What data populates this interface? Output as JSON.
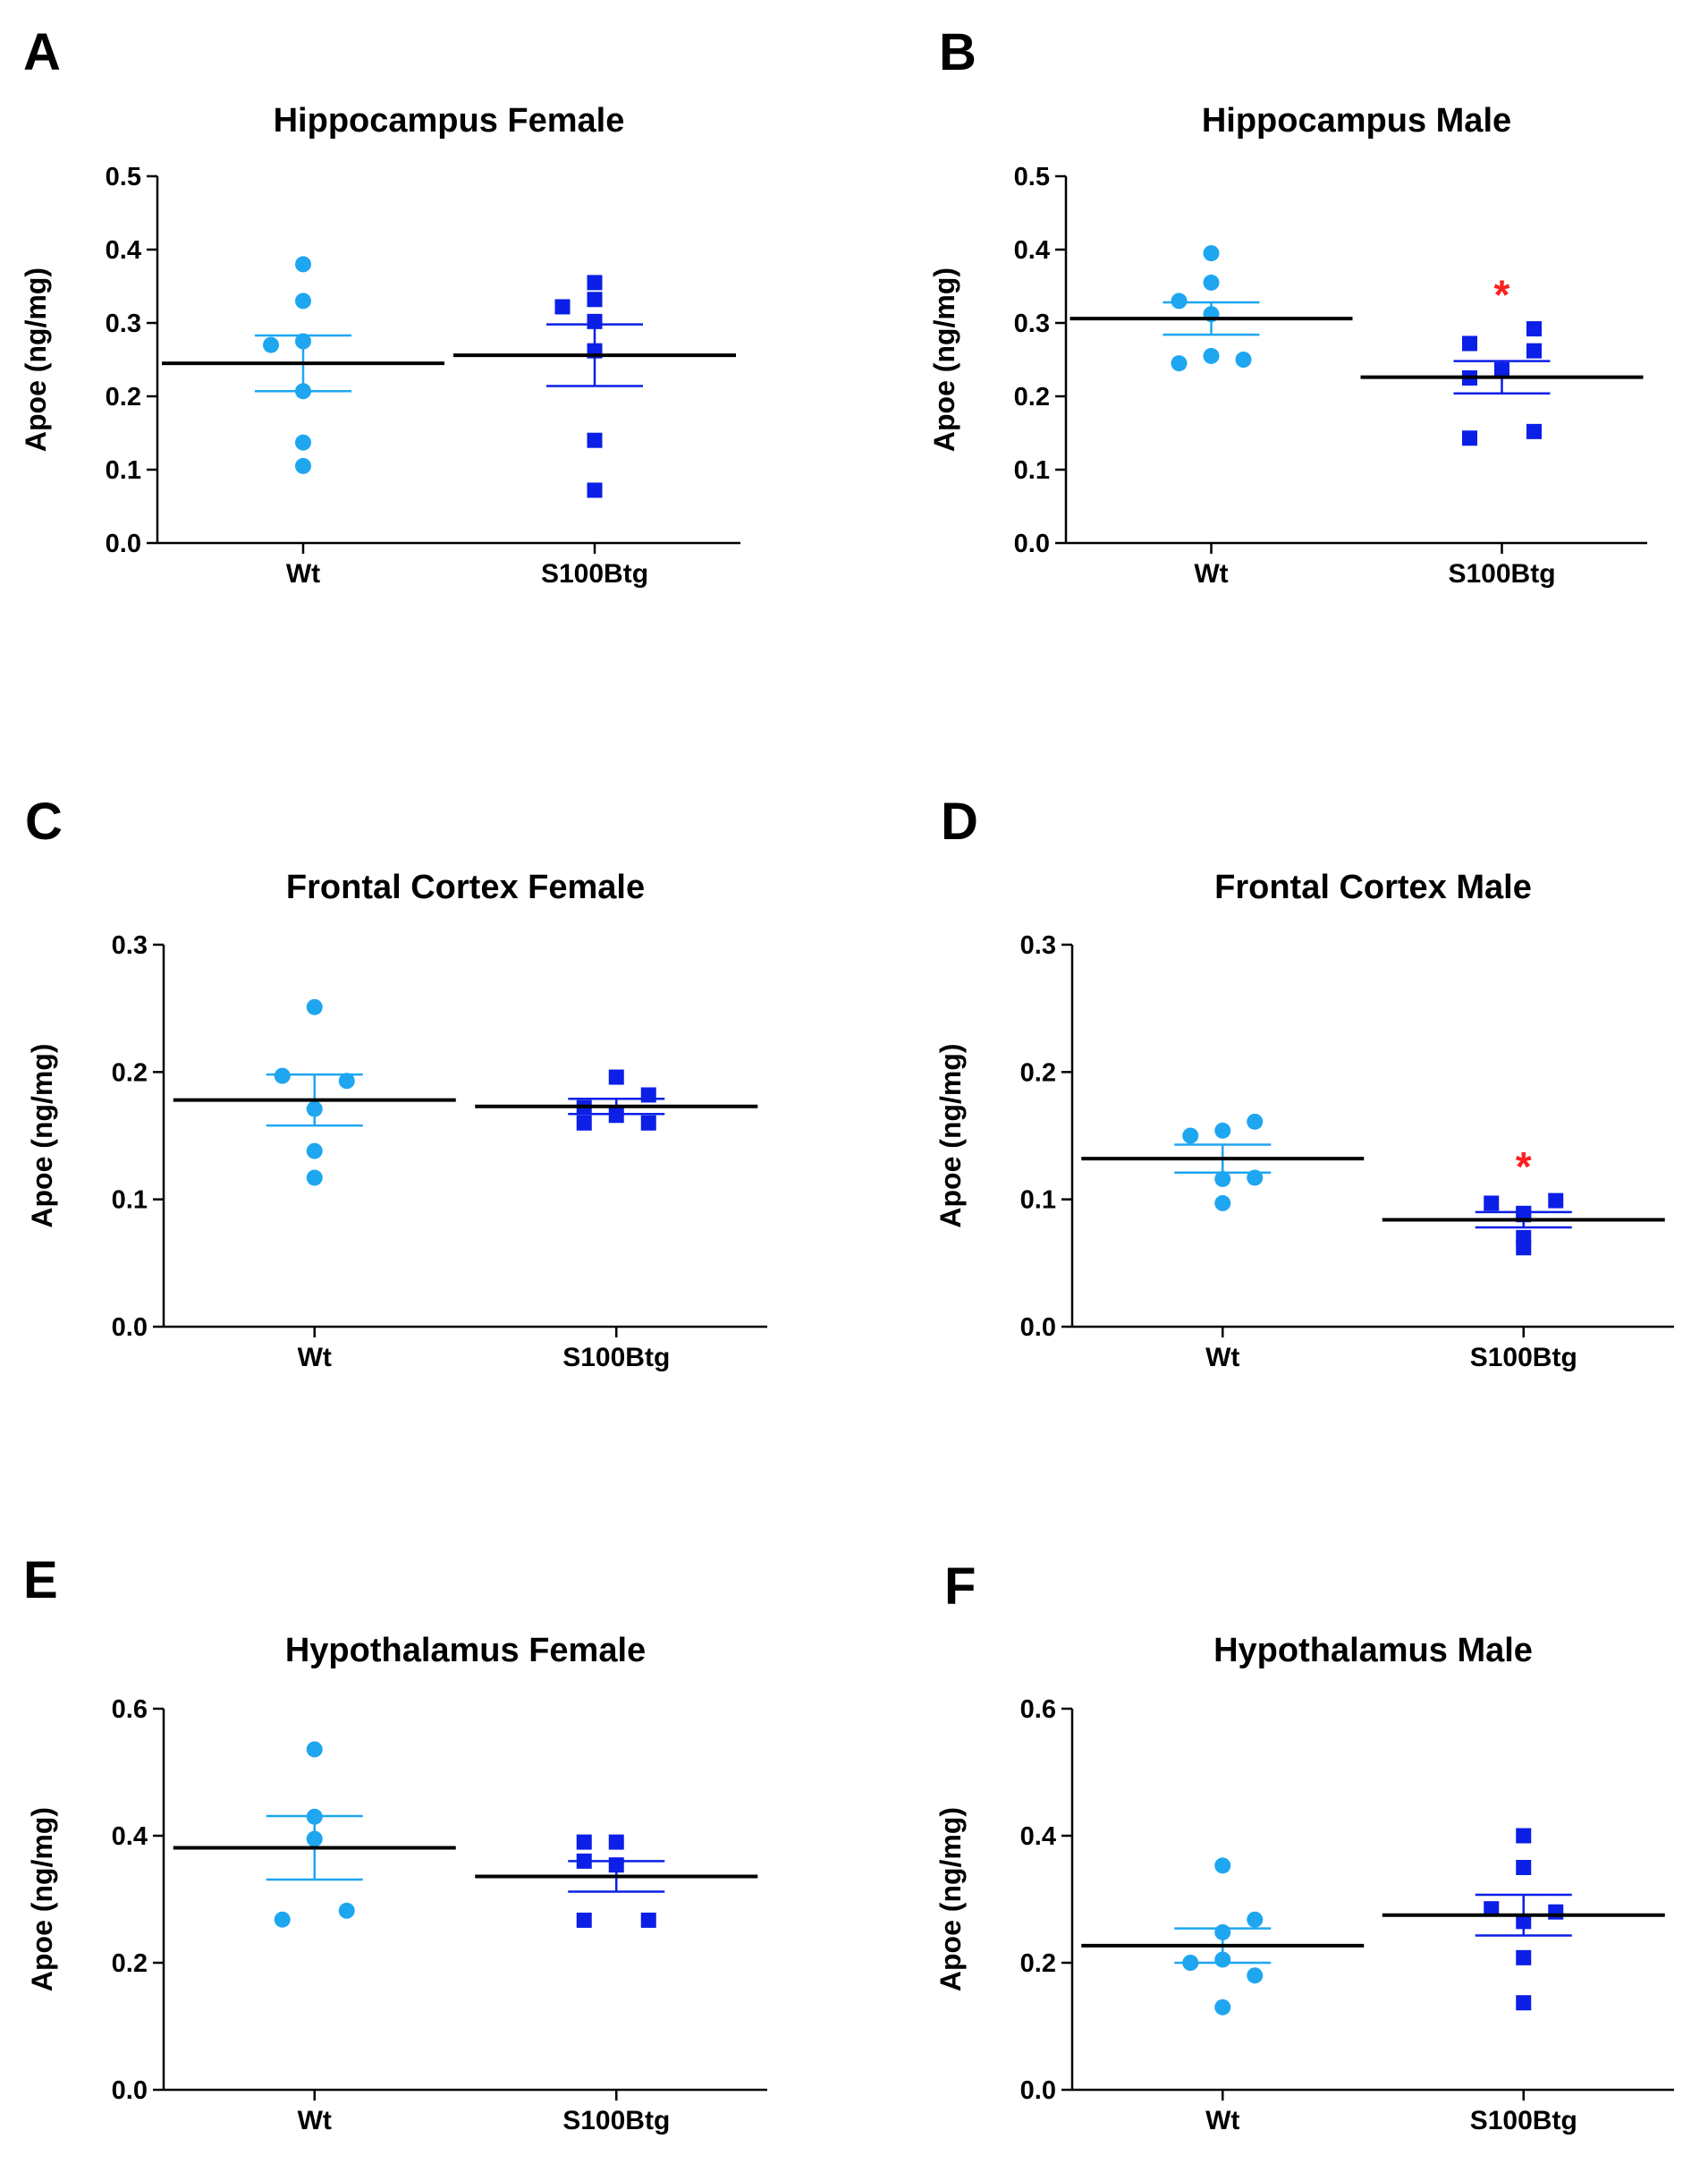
{
  "colors": {
    "wt": "#1ea6f0",
    "tg": "#0b1fe6",
    "axis": "#000000",
    "mean": "#000000",
    "significance": "#ff2020"
  },
  "chart_data": [
    {
      "letter": "A",
      "type": "scatter",
      "title": "Hippocampus Female",
      "ylabel": "Apoe (ng/mg)",
      "ylim": [
        0,
        0.5
      ],
      "yticks": [
        "0.0",
        "0.1",
        "0.2",
        "0.3",
        "0.4",
        "0.5"
      ],
      "categories": [
        "Wt",
        "S100Btg"
      ],
      "series": [
        {
          "name": "Wt",
          "marker": "circle",
          "points": [
            {
              "dx": 0,
              "y": 0.38
            },
            {
              "dx": 0,
              "y": 0.33
            },
            {
              "dx": -1,
              "y": 0.27
            },
            {
              "dx": 0,
              "y": 0.275
            },
            {
              "dx": 0,
              "y": 0.207
            },
            {
              "dx": 0,
              "y": 0.137
            },
            {
              "dx": 0,
              "y": 0.105
            }
          ],
          "mean": 0.245,
          "sem": 0.038
        },
        {
          "name": "S100Btg",
          "marker": "square",
          "points": [
            {
              "dx": 0,
              "y": 0.355
            },
            {
              "dx": -1,
              "y": 0.322
            },
            {
              "dx": 0,
              "y": 0.332
            },
            {
              "dx": 0,
              "y": 0.302
            },
            {
              "dx": 0,
              "y": 0.262
            },
            {
              "dx": 0,
              "y": 0.14
            },
            {
              "dx": 0,
              "y": 0.072
            }
          ],
          "mean": 0.256,
          "sem": 0.042,
          "significant": false
        }
      ]
    },
    {
      "letter": "B",
      "type": "scatter",
      "title": "Hippocampus Male",
      "ylabel": "Apoe (ng/mg)",
      "ylim": [
        0,
        0.5
      ],
      "yticks": [
        "0.0",
        "0.1",
        "0.2",
        "0.3",
        "0.4",
        "0.5"
      ],
      "categories": [
        "Wt",
        "S100Btg"
      ],
      "series": [
        {
          "name": "Wt",
          "marker": "circle",
          "points": [
            {
              "dx": 0,
              "y": 0.395
            },
            {
              "dx": 0,
              "y": 0.355
            },
            {
              "dx": -1,
              "y": 0.33
            },
            {
              "dx": 0,
              "y": 0.312
            },
            {
              "dx": -1,
              "y": 0.245
            },
            {
              "dx": 0,
              "y": 0.255
            },
            {
              "dx": 1,
              "y": 0.25
            }
          ],
          "mean": 0.306,
          "sem": 0.022
        },
        {
          "name": "S100Btg",
          "marker": "square",
          "points": [
            {
              "dx": 1,
              "y": 0.292
            },
            {
              "dx": -1,
              "y": 0.272
            },
            {
              "dx": 1,
              "y": 0.262
            },
            {
              "dx": 0,
              "y": 0.236
            },
            {
              "dx": -1,
              "y": 0.225
            },
            {
              "dx": -1,
              "y": 0.143
            },
            {
              "dx": 1,
              "y": 0.152
            }
          ],
          "mean": 0.226,
          "sem": 0.022,
          "significant": true,
          "significance_label": "*"
        }
      ]
    },
    {
      "letter": "C",
      "type": "scatter",
      "title": "Frontal Cortex Female",
      "ylabel": "Apoe (ng/mg)",
      "ylim": [
        0,
        0.3
      ],
      "yticks": [
        "0.0",
        "0.1",
        "0.2",
        "0.3"
      ],
      "categories": [
        "Wt",
        "S100Btg"
      ],
      "series": [
        {
          "name": "Wt",
          "marker": "circle",
          "points": [
            {
              "dx": 0,
              "y": 0.251
            },
            {
              "dx": -1,
              "y": 0.197
            },
            {
              "dx": 1,
              "y": 0.193
            },
            {
              "dx": 0,
              "y": 0.171
            },
            {
              "dx": 0,
              "y": 0.138
            },
            {
              "dx": 0,
              "y": 0.117
            }
          ],
          "mean": 0.178,
          "sem": 0.02
        },
        {
          "name": "S100Btg",
          "marker": "square",
          "points": [
            {
              "dx": 0,
              "y": 0.196
            },
            {
              "dx": 1,
              "y": 0.182
            },
            {
              "dx": -1,
              "y": 0.172
            },
            {
              "dx": 0,
              "y": 0.166
            },
            {
              "dx": -1,
              "y": 0.16
            },
            {
              "dx": 1,
              "y": 0.16
            }
          ],
          "mean": 0.173,
          "sem": 0.006,
          "significant": false
        }
      ]
    },
    {
      "letter": "D",
      "type": "scatter",
      "title": "Frontal Cortex Male",
      "ylabel": "Apoe (ng/mg)",
      "ylim": [
        0,
        0.3
      ],
      "yticks": [
        "0.0",
        "0.1",
        "0.2",
        "0.3"
      ],
      "categories": [
        "Wt",
        "S100Btg"
      ],
      "series": [
        {
          "name": "Wt",
          "marker": "circle",
          "points": [
            {
              "dx": 1,
              "y": 0.161
            },
            {
              "dx": 0,
              "y": 0.154
            },
            {
              "dx": -1,
              "y": 0.15
            },
            {
              "dx": 0,
              "y": 0.116
            },
            {
              "dx": 1,
              "y": 0.117
            },
            {
              "dx": 0,
              "y": 0.097
            }
          ],
          "mean": 0.132,
          "sem": 0.011
        },
        {
          "name": "S100Btg",
          "marker": "square",
          "points": [
            {
              "dx": 1,
              "y": 0.099
            },
            {
              "dx": -1,
              "y": 0.097
            },
            {
              "dx": 0,
              "y": 0.089
            },
            {
              "dx": 0,
              "y": 0.088
            },
            {
              "dx": 0,
              "y": 0.07
            },
            {
              "dx": 0,
              "y": 0.062
            }
          ],
          "mean": 0.084,
          "sem": 0.006,
          "significant": true,
          "significance_label": "*"
        }
      ]
    },
    {
      "letter": "E",
      "type": "scatter",
      "title": "Hypothalamus Female",
      "ylabel": "Apoe (ng/mg)",
      "ylim": [
        0,
        0.6
      ],
      "yticks": [
        "0.0",
        "0.2",
        "0.4",
        "0.6"
      ],
      "categories": [
        "Wt",
        "S100Btg"
      ],
      "series": [
        {
          "name": "Wt",
          "marker": "circle",
          "points": [
            {
              "dx": 0,
              "y": 0.536
            },
            {
              "dx": 0,
              "y": 0.43
            },
            {
              "dx": 0,
              "y": 0.395
            },
            {
              "dx": 1,
              "y": 0.282
            },
            {
              "dx": -1,
              "y": 0.268
            }
          ],
          "mean": 0.381,
          "sem": 0.05
        },
        {
          "name": "S100Btg",
          "marker": "square",
          "points": [
            {
              "dx": -1,
              "y": 0.39
            },
            {
              "dx": 0,
              "y": 0.39
            },
            {
              "dx": -1,
              "y": 0.36
            },
            {
              "dx": 0,
              "y": 0.354
            },
            {
              "dx": -1,
              "y": 0.267
            },
            {
              "dx": 1,
              "y": 0.267
            }
          ],
          "mean": 0.336,
          "sem": 0.024,
          "significant": false
        }
      ]
    },
    {
      "letter": "F",
      "type": "scatter",
      "title": "Hypothalamus Male",
      "ylabel": "Apoe (ng/mg)",
      "ylim": [
        0,
        0.6
      ],
      "yticks": [
        "0.0",
        "0.2",
        "0.4",
        "0.6"
      ],
      "categories": [
        "Wt",
        "S100Btg"
      ],
      "series": [
        {
          "name": "Wt",
          "marker": "circle",
          "points": [
            {
              "dx": 0,
              "y": 0.353
            },
            {
              "dx": 1,
              "y": 0.268
            },
            {
              "dx": 0,
              "y": 0.248
            },
            {
              "dx": -1,
              "y": 0.2
            },
            {
              "dx": 0,
              "y": 0.205
            },
            {
              "dx": 1,
              "y": 0.18
            },
            {
              "dx": 0,
              "y": 0.13
            }
          ],
          "mean": 0.227,
          "sem": 0.027
        },
        {
          "name": "S100Btg",
          "marker": "square",
          "points": [
            {
              "dx": 0,
              "y": 0.4
            },
            {
              "dx": 0,
              "y": 0.35
            },
            {
              "dx": -1,
              "y": 0.285
            },
            {
              "dx": 1,
              "y": 0.28
            },
            {
              "dx": 0,
              "y": 0.265
            },
            {
              "dx": 0,
              "y": 0.208
            },
            {
              "dx": 0,
              "y": 0.137
            }
          ],
          "mean": 0.275,
          "sem": 0.032,
          "significant": true,
          "significance_label": ""
        }
      ]
    }
  ]
}
